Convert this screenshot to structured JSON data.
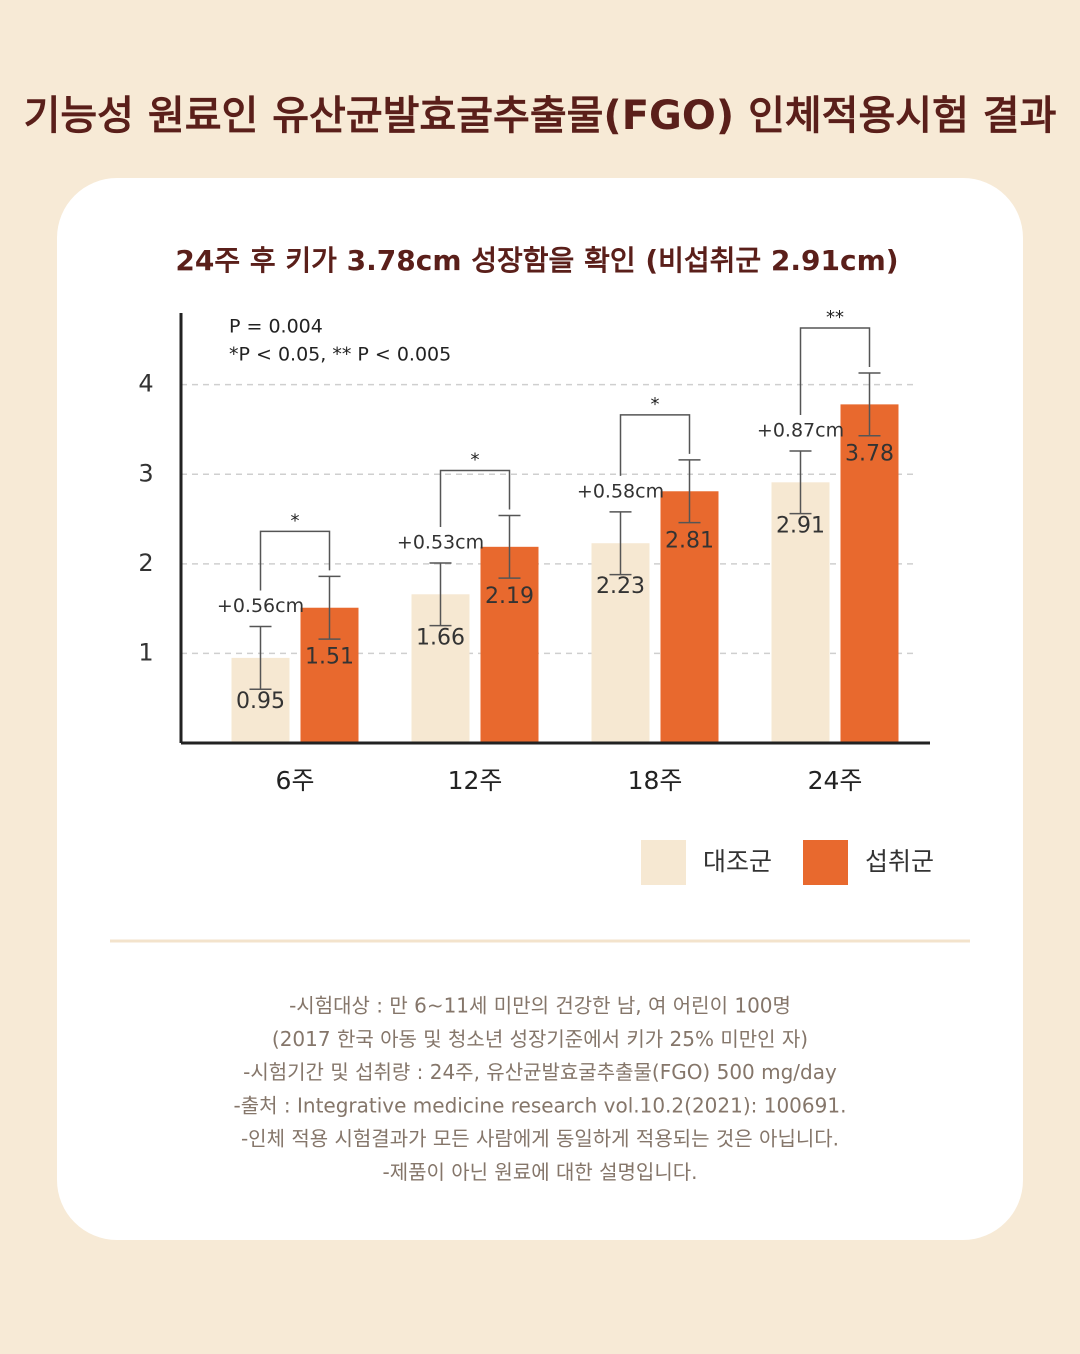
{
  "header": {
    "title": "기능성 원료인 유산균발효굴추출물(FGO) 인체적용시험 결과"
  },
  "chart_data": {
    "type": "bar",
    "title": "24주 후 키가 3.78cm 성장함을 확인 (비섭취군 2.91cm)",
    "categories": [
      "6주",
      "12주",
      "18주",
      "24주"
    ],
    "series": [
      {
        "name": "대조군",
        "color": "#f6e8d2",
        "values": [
          0.95,
          1.66,
          2.23,
          2.91
        ],
        "errors": [
          0.35,
          0.35,
          0.35,
          0.35
        ]
      },
      {
        "name": "섭취군",
        "color": "#e8692e",
        "values": [
          1.51,
          2.19,
          2.81,
          3.78
        ],
        "errors": [
          0.35,
          0.35,
          0.35,
          0.35
        ]
      }
    ],
    "differences": [
      "+0.56cm",
      "+0.53cm",
      "+0.58cm",
      "+0.87cm"
    ],
    "significance": [
      "*",
      "*",
      "*",
      "**"
    ],
    "notes": [
      "P = 0.004",
      "*P < 0.05,  ** P < 0.005"
    ],
    "ylim": [
      0,
      4.8
    ],
    "yticks": [
      1,
      2,
      3,
      4
    ],
    "grid": true,
    "legend": "bottom-right"
  },
  "footnotes": [
    "-시험대상 : 만 6~11세 미만의 건강한 남, 여 어린이 100명",
    "(2017 한국 아동 및 청소년 성장기준에서 키가 25% 미만인 자)",
    "-시험기간 및 섭취량 : 24주, 유산균발효굴추출물(FGO) 500 mg/day",
    "-출처 : Integrative medicine research vol.10.2(2021): 100691.",
    "-인체 적용 시험결과가 모든 사람에게 동일하게 적용되는 것은 아닙니다.",
    "-제품이 아닌 원료에 대한 설명입니다."
  ]
}
